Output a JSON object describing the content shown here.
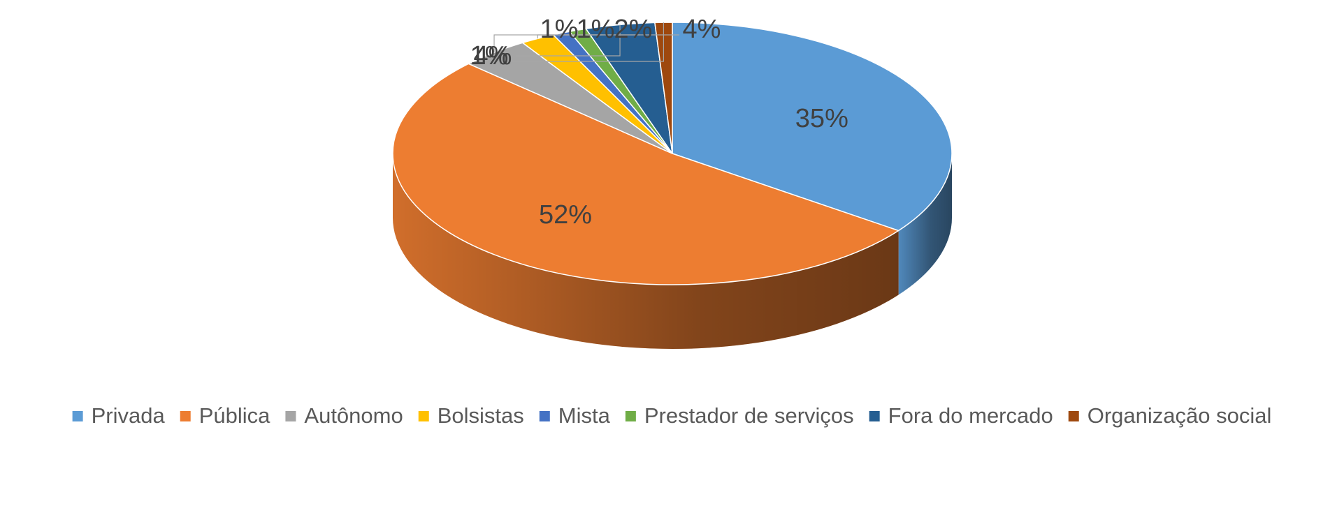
{
  "chart_data": {
    "type": "pie",
    "title": "",
    "legend_position": "bottom",
    "slices": [
      {
        "name": "Privada",
        "value": 35,
        "label": "35%",
        "color": "#5B9BD5"
      },
      {
        "name": "Pública",
        "value": 52,
        "label": "52%",
        "color": "#ED7D31"
      },
      {
        "name": "Autônomo",
        "value": 4,
        "label": "4%",
        "color": "#A5A5A5"
      },
      {
        "name": "Bolsistas",
        "value": 2,
        "label": "2%",
        "color": "#FFC000"
      },
      {
        "name": "Mista",
        "value": 1,
        "label": "1%",
        "color": "#4472C4"
      },
      {
        "name": "Prestador de serviços",
        "value": 1,
        "label": "1%",
        "color": "#70AD47"
      },
      {
        "name": "Fora do mercado",
        "value": 4,
        "label": "4%",
        "color": "#255E91"
      },
      {
        "name": "Organização social",
        "value": 1,
        "label": "1%",
        "color": "#9E480E"
      }
    ]
  }
}
